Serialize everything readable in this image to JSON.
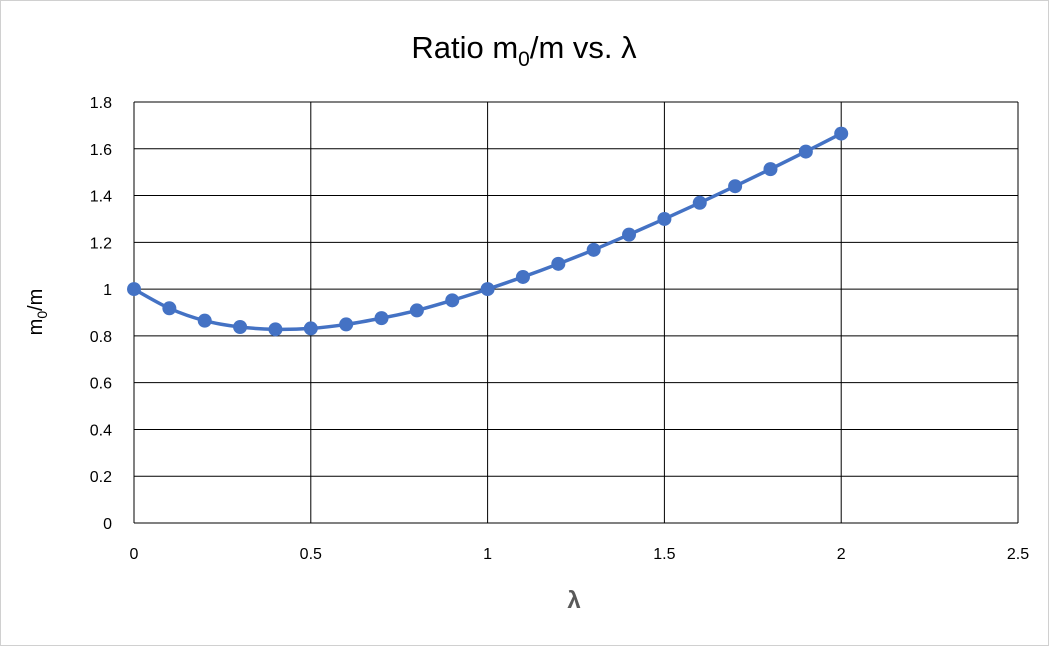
{
  "chart_data": {
    "type": "line",
    "title": {
      "main": "Ratio m",
      "sub": "0",
      "tail": "/m vs. λ"
    },
    "xlabel": "λ",
    "ylabel": {
      "main": "m",
      "sub": "0",
      "tail": "/m"
    },
    "xlim": [
      0,
      2.5
    ],
    "ylim": [
      0,
      1.8
    ],
    "xticks": [
      "0",
      "0.5",
      "1",
      "1.5",
      "2",
      "2.5"
    ],
    "yticks": [
      "0",
      "0.2",
      "0.4",
      "0.6",
      "0.8",
      "1",
      "1.2",
      "1.4",
      "1.6",
      "1.8"
    ],
    "grid": true,
    "series": [
      {
        "color": "#4472C4",
        "x": [
          0,
          0.1,
          0.2,
          0.3,
          0.4,
          0.5,
          0.6,
          0.7,
          0.8,
          0.9,
          1.0,
          1.1,
          1.2,
          1.3,
          1.4,
          1.5,
          1.6,
          1.7,
          1.8,
          1.9,
          2.0
        ],
        "y": [
          1.0,
          0.918,
          0.865,
          0.838,
          0.828,
          0.832,
          0.849,
          0.876,
          0.909,
          0.952,
          1.0,
          1.052,
          1.108,
          1.168,
          1.233,
          1.3,
          1.369,
          1.44,
          1.513,
          1.588,
          1.665
        ]
      }
    ]
  }
}
